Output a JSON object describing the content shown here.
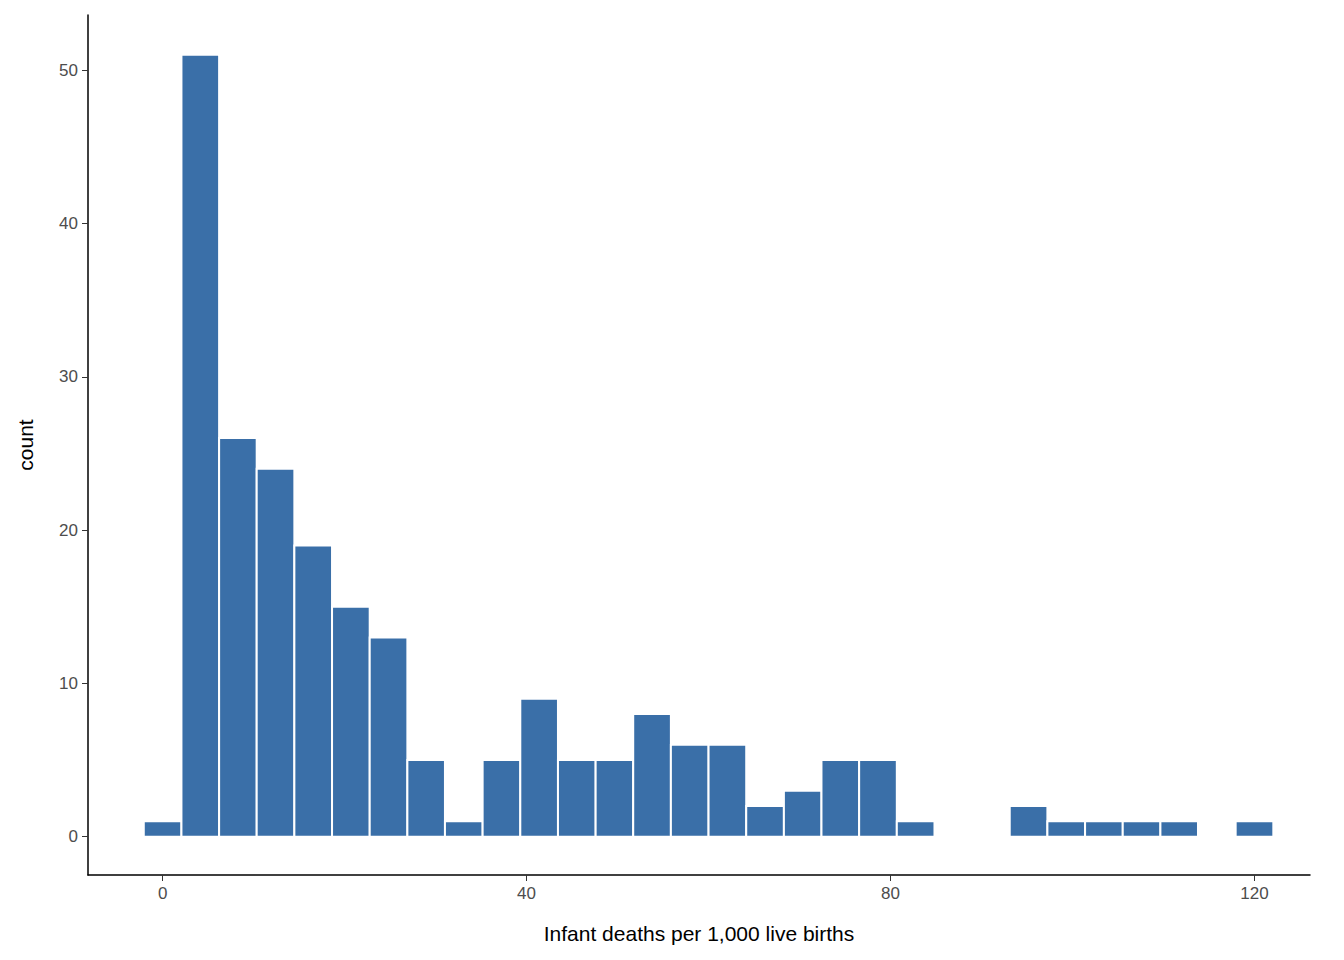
{
  "chart_data": {
    "type": "histogram",
    "xlabel": "Infant deaths per 1,000 live births",
    "ylabel": "count",
    "bins": [
      -2.07,
      2.07,
      6.21,
      10.34,
      14.48,
      18.62,
      22.76,
      26.9,
      31.03,
      35.17,
      39.31,
      43.45,
      47.59,
      51.72,
      55.86,
      60.0,
      64.14,
      68.28,
      72.41,
      76.55,
      80.69,
      84.83,
      88.97,
      93.1,
      97.24,
      101.38,
      105.52,
      109.66,
      113.79,
      117.93,
      122.07
    ],
    "counts": [
      1,
      51,
      26,
      24,
      19,
      15,
      13,
      5,
      1,
      5,
      9,
      5,
      5,
      8,
      6,
      6,
      2,
      3,
      5,
      5,
      1,
      0,
      0,
      2,
      1,
      1,
      1,
      1,
      0,
      1
    ],
    "color": "#3a6fa8",
    "xlim": [
      -8.2,
      126.1
    ],
    "xticks": [
      0,
      40,
      80,
      120
    ],
    "ylim": [
      -2.5,
      53.6
    ],
    "yticks": [
      0,
      10,
      20,
      30,
      40,
      50
    ],
    "grid": false
  }
}
